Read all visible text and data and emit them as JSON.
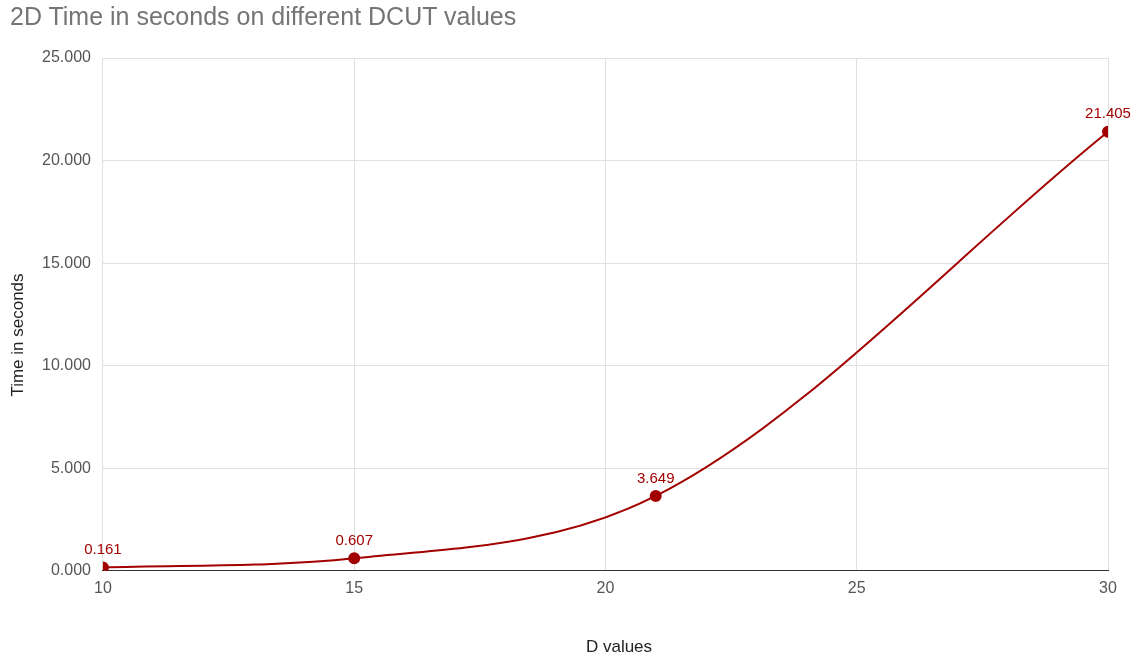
{
  "chart_data": {
    "type": "line",
    "title": "2D Time in seconds on different DCUT values",
    "xlabel": "D values",
    "ylabel": "Time in seconds",
    "x": [
      10,
      15,
      21,
      30
    ],
    "series": [
      {
        "color": "#a30000",
        "values": [
          0.161,
          0.607,
          3.649,
          21.405
        ]
      }
    ],
    "xlim": [
      10,
      30
    ],
    "xticks": [
      10,
      15,
      20,
      25,
      30
    ],
    "ylim": [
      0,
      25
    ],
    "yticks": [
      {
        "value": 0,
        "label": "0.000"
      },
      {
        "value": 5,
        "label": "5.000"
      },
      {
        "value": 10,
        "label": "10.000"
      },
      {
        "value": 15,
        "label": "15.000"
      },
      {
        "value": 20,
        "label": "20.000"
      },
      {
        "value": 25,
        "label": "25.000"
      }
    ],
    "grid": true,
    "legend": false,
    "marker": "circle",
    "line_style": "solid",
    "data_labels": true
  }
}
